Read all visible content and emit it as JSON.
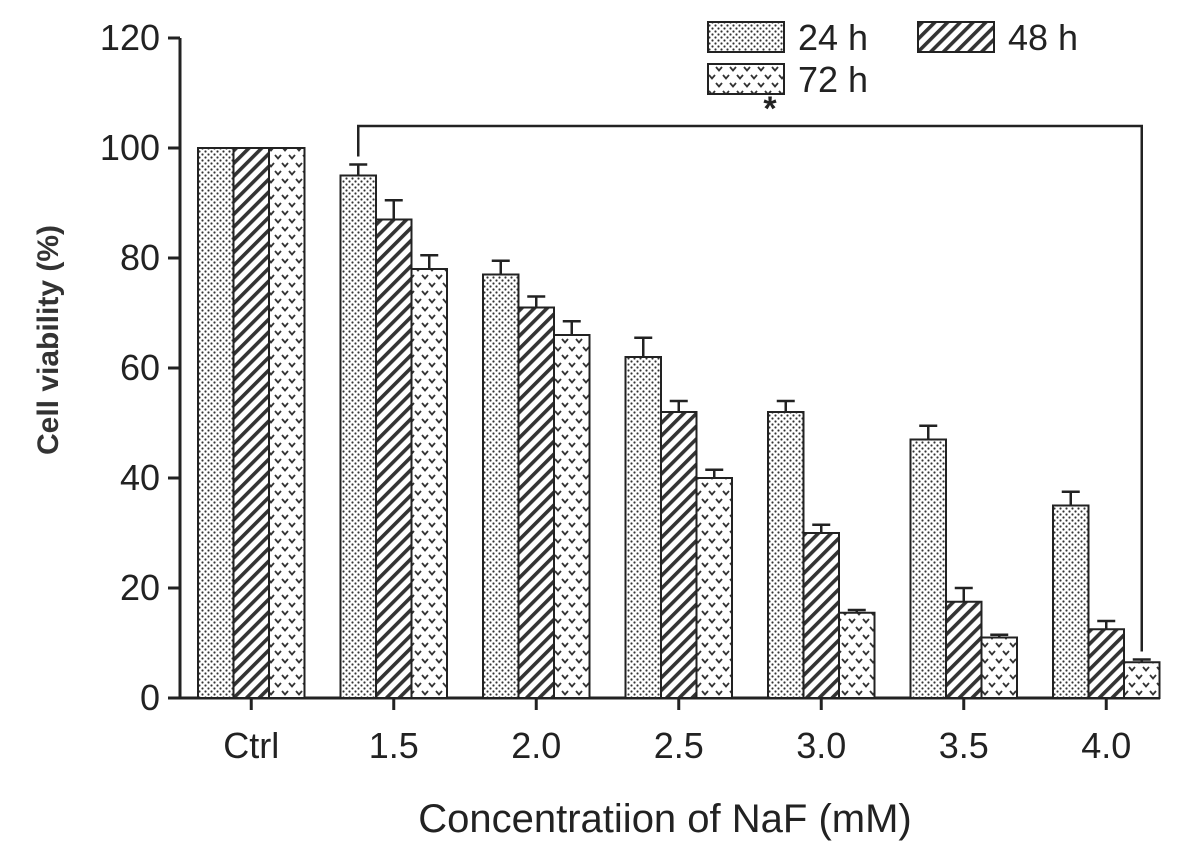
{
  "chart_data": {
    "type": "bar",
    "xlabel": "Concentratiion of NaF (mM)",
    "ylabel": "Cell viability (%)",
    "ylim": [
      0,
      120
    ],
    "yticks": [
      "0",
      "20",
      "40",
      "60",
      "80",
      "100",
      "120"
    ],
    "categories": [
      "Ctrl",
      "1.5",
      "2.0",
      "2.5",
      "3.0",
      "3.5",
      "4.0"
    ],
    "series": [
      {
        "name": "24 h",
        "pattern": "dots",
        "values": [
          100,
          95,
          77,
          62,
          52,
          47,
          35
        ],
        "errors": [
          0,
          2,
          2.5,
          3.5,
          2,
          2.5,
          2.5
        ]
      },
      {
        "name": "48 h",
        "pattern": "hatch",
        "values": [
          100,
          87,
          71,
          52,
          30,
          17.5,
          12.5
        ],
        "errors": [
          0,
          3.5,
          2,
          2,
          1.5,
          2.5,
          1.5
        ]
      },
      {
        "name": "72 h",
        "pattern": "chevron",
        "values": [
          100,
          78,
          66,
          40,
          15.5,
          11,
          6.5
        ],
        "errors": [
          0,
          2.5,
          2.5,
          1.5,
          0.5,
          0.5,
          0.5
        ]
      }
    ],
    "legend_position": "top-right",
    "annotation": {
      "text": "*",
      "from_category": "1.5",
      "to_category": "4.0"
    },
    "grid": false,
    "colors": {
      "bar_outline": "#222222",
      "pattern": "#333333",
      "background": "#ffffff"
    }
  }
}
